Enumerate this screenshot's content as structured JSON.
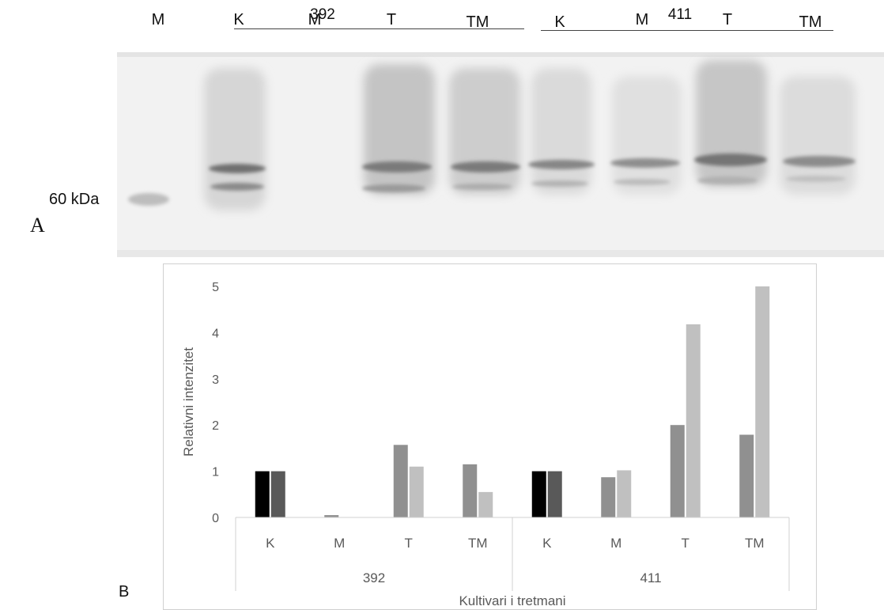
{
  "panel_a": {
    "letter": "A",
    "marker_label": "60 kDa",
    "group_labels": [
      "392",
      "411"
    ],
    "lane_labels": [
      "M",
      "K",
      "M",
      "T",
      "TM",
      "K",
      "M",
      "T",
      "TM"
    ]
  },
  "panel_b": {
    "letter": "B"
  },
  "chart_data": {
    "type": "bar",
    "title": "",
    "xlabel": "Kultivari i tretmani",
    "ylabel": "Relativni intenzitet",
    "ylim": [
      0,
      5
    ],
    "yticks": [
      "0",
      "1",
      "2",
      "3",
      "4",
      "5"
    ],
    "grid": false,
    "legend": "none",
    "groups": [
      {
        "label": "392",
        "categories": [
          {
            "label": "K",
            "values": [
              1.0,
              1.0
            ],
            "colors": [
              "#000000",
              "#595959"
            ]
          },
          {
            "label": "M",
            "values": [
              0.05,
              0.0
            ],
            "colors": [
              "#909090",
              "#c0c0c0"
            ]
          },
          {
            "label": "T",
            "values": [
              1.57,
              1.1
            ],
            "colors": [
              "#909090",
              "#c0c0c0"
            ]
          },
          {
            "label": "TM",
            "values": [
              1.15,
              0.55
            ],
            "colors": [
              "#909090",
              "#c0c0c0"
            ]
          }
        ]
      },
      {
        "label": "411",
        "categories": [
          {
            "label": "K",
            "values": [
              1.0,
              1.0
            ],
            "colors": [
              "#000000",
              "#595959"
            ]
          },
          {
            "label": "M",
            "values": [
              0.87,
              1.02
            ],
            "colors": [
              "#909090",
              "#c0c0c0"
            ]
          },
          {
            "label": "T",
            "values": [
              2.0,
              4.18
            ],
            "colors": [
              "#909090",
              "#c0c0c0"
            ]
          },
          {
            "label": "TM",
            "values": [
              1.79,
              5.0
            ],
            "colors": [
              "#909090",
              "#c0c0c0"
            ]
          }
        ]
      }
    ]
  }
}
